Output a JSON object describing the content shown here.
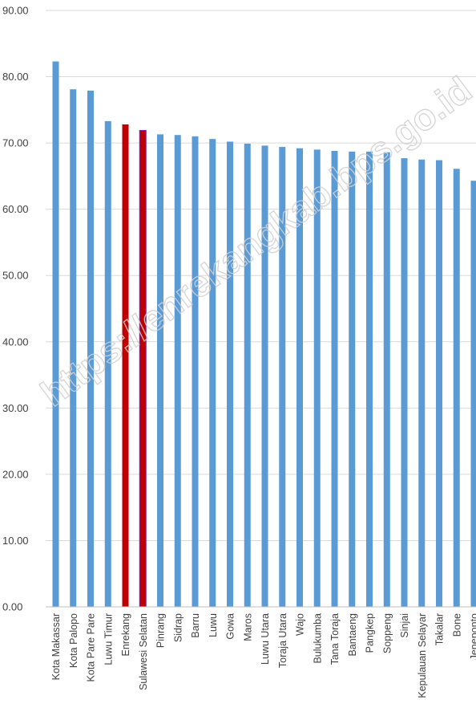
{
  "chart_data": {
    "type": "bar",
    "ylim": [
      0,
      90
    ],
    "yticks": [
      "0.00",
      "10.00",
      "20.00",
      "30.00",
      "40.00",
      "50.00",
      "60.00",
      "70.00",
      "80.00",
      "90.00"
    ],
    "grid": true,
    "categories": [
      "Kota Makassar",
      "Kota Palopo",
      "Kota Pare Pare",
      "Luwu Timur",
      "Enrekang",
      "Sulawesi Selatan",
      "Pinrang",
      "Sidrap",
      "Barru",
      "Luwu",
      "Gowa",
      "Maros",
      "Luwu Utara",
      "Toraja Utara",
      "Wajo",
      "Bulukumba",
      "Tana Toraja",
      "Bantaeng",
      "Pangkep",
      "Soppeng",
      "Sinjai",
      "Kepulauan Selayar",
      "Takalar",
      "Bone",
      "Jeneponto"
    ],
    "values": [
      82.3,
      78.1,
      77.9,
      73.3,
      72.8,
      71.9,
      71.3,
      71.2,
      71.0,
      70.6,
      70.2,
      69.9,
      69.6,
      69.4,
      69.2,
      69.0,
      68.8,
      68.7,
      68.7,
      68.6,
      67.7,
      67.5,
      67.4,
      66.1,
      64.3
    ],
    "colors": {
      "default": "#5b9bd5",
      "highlight": "#c00000",
      "highlight_outline": "#7030a0",
      "grid": "#d9d9d9",
      "axis": "#bfbfbf"
    },
    "highlighted": [
      "Enrekang",
      "Sulawesi Selatan"
    ]
  },
  "watermark": "https://enrekangkab.bps.go.id"
}
